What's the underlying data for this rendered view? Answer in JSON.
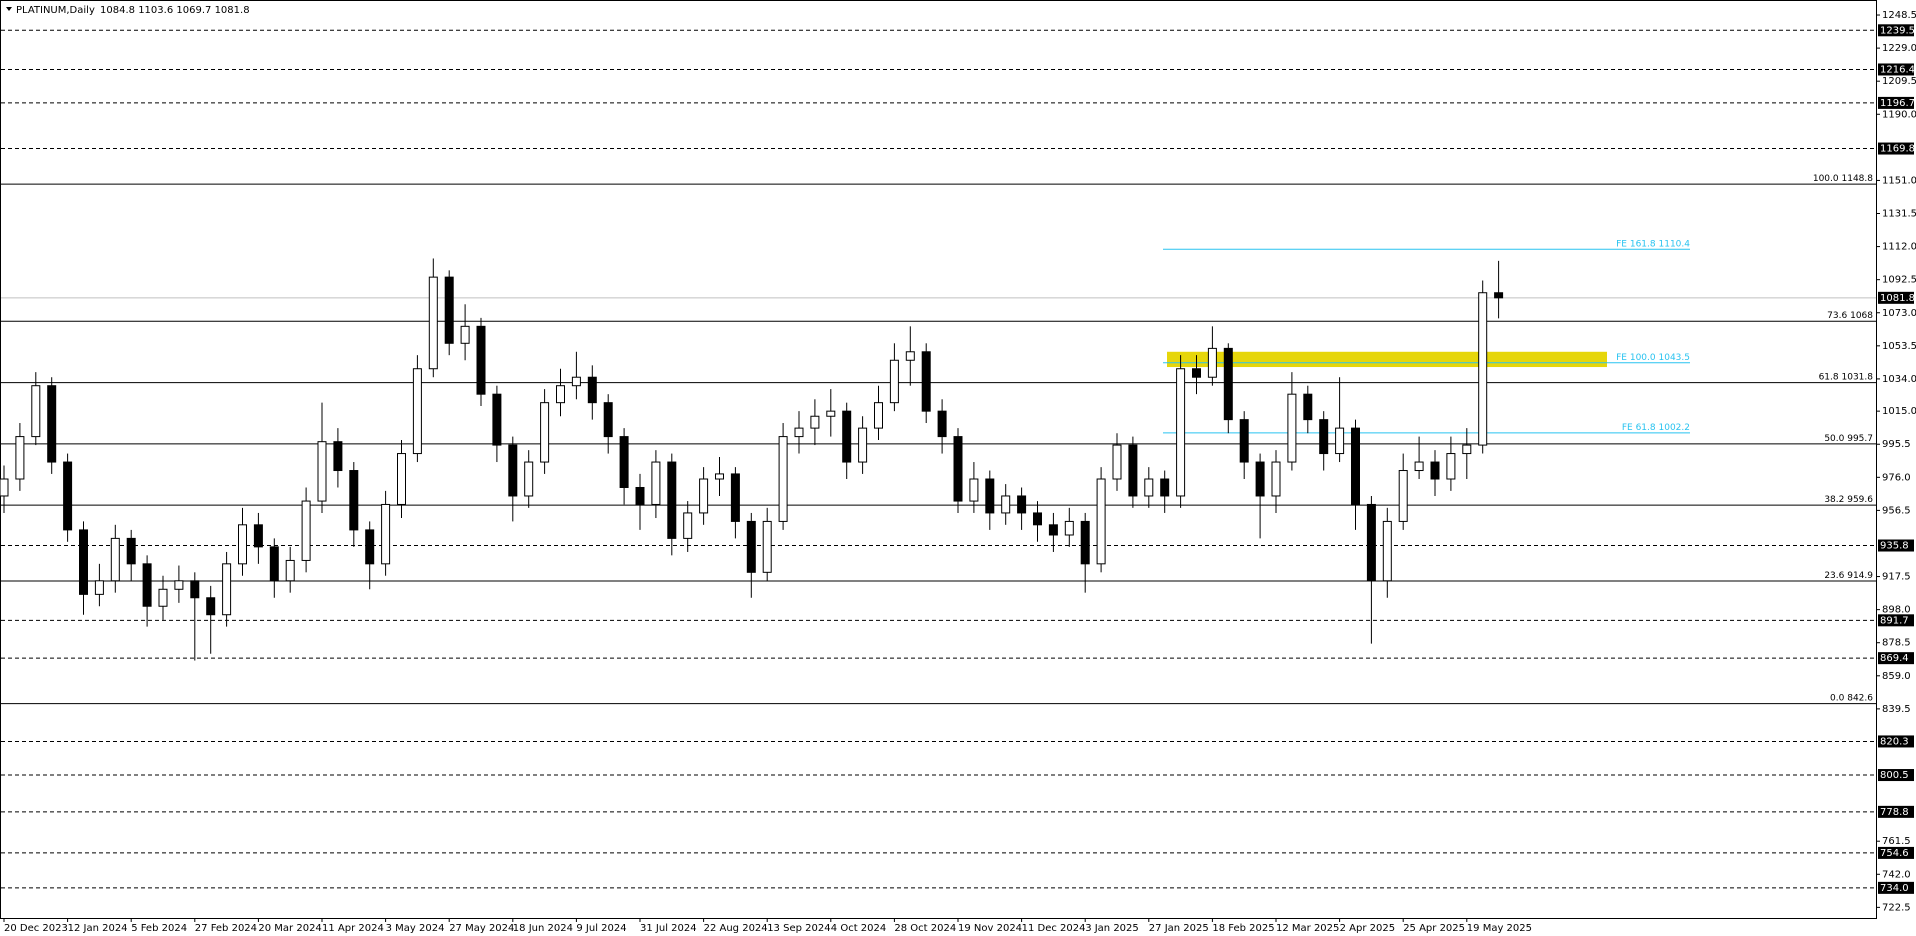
{
  "chart_data": {
    "type": "candlestick",
    "symbol": "PLATINUM,Daily",
    "ylim": [
      718,
      1255
    ],
    "yticks": [
      1248.5,
      {
        "value": 1229,
        "label": "1229.0"
      },
      1209.5,
      {
        "value": 1190,
        "label": "1190.0"
      },
      {
        "value": 1151,
        "label": "1151.0"
      },
      1131.5,
      {
        "value": 1112,
        "label": "1112.0"
      },
      1092.5,
      {
        "value": 1073,
        "label": "1073.0"
      },
      1053.5,
      {
        "value": 1034,
        "label": "1034.0"
      },
      {
        "value": 1015,
        "label": "1015.0"
      },
      995.5,
      {
        "value": 976,
        "label": "976.0"
      },
      956.5,
      917.5,
      {
        "value": 898,
        "label": "898.0"
      },
      878.5,
      {
        "value": 859,
        "label": "859.0"
      },
      839.5,
      761.5,
      {
        "value": 742,
        "label": "742.0"
      },
      722.5
    ],
    "xticks": [
      {
        "value": 0,
        "label": "20 Dec 2023"
      },
      {
        "value": 4,
        "label": "12 Jan 2024"
      },
      {
        "value": 8,
        "label": "5 Feb 2024"
      },
      {
        "value": 12,
        "label": "27 Feb 2024"
      },
      {
        "value": 16,
        "label": "20 Mar 2024"
      },
      {
        "value": 20,
        "label": "11 Apr 2024"
      },
      {
        "value": 24,
        "label": "3 May 2024"
      },
      {
        "value": 28,
        "label": "27 May 2024"
      },
      {
        "value": 32,
        "label": "18 Jun 2024"
      },
      {
        "value": 36,
        "label": "9 Jul 2024"
      },
      {
        "value": 40,
        "label": "31 Jul 2024"
      },
      {
        "value": 44,
        "label": "22 Aug 2024"
      },
      {
        "value": 48,
        "label": "13 Sep 2024"
      },
      {
        "value": 52,
        "label": "4 Oct 2024"
      },
      {
        "value": 56,
        "label": "28 Oct 2024"
      },
      {
        "value": 60,
        "label": "19 Nov 2024"
      },
      {
        "value": 64,
        "label": "11 Dec 2024"
      },
      {
        "value": 68,
        "label": "3 Jan 2025"
      },
      {
        "value": 72,
        "label": "27 Jan 2025"
      },
      {
        "value": 76,
        "label": "18 Feb 2025"
      },
      {
        "value": 80,
        "label": "12 Mar 2025"
      },
      {
        "value": 84,
        "label": "2 Apr 2025"
      },
      {
        "value": 88,
        "label": "25 Apr 2025"
      },
      {
        "value": 92,
        "label": "19 May 2025"
      }
    ],
    "candles": {
      "open": [
        965,
        975,
        1000,
        1030,
        985,
        945,
        907,
        915,
        940,
        925,
        900,
        910,
        915,
        905,
        895,
        925,
        948,
        935,
        915,
        927,
        962,
        997,
        980,
        945,
        925,
        960,
        990,
        1040,
        1094,
        1055,
        1065,
        1025,
        995,
        965,
        985,
        1020,
        1030,
        1035,
        1020,
        1000,
        970,
        960,
        985,
        940,
        955,
        975,
        978,
        950,
        920,
        950,
        1000,
        1005,
        1012,
        1015,
        985,
        1005,
        1020,
        1045,
        1050,
        1015,
        1000,
        962,
        975,
        955,
        965,
        955,
        948,
        942,
        950,
        925,
        975,
        995,
        965,
        975,
        965,
        1040,
        1035,
        1052,
        1010,
        985,
        965,
        985,
        1025,
        1010,
        990,
        1005,
        960,
        915,
        950,
        980,
        985,
        975,
        990,
        995,
        1084.8
      ],
      "high": [
        983,
        1008,
        1038,
        1035,
        990,
        950,
        925,
        948,
        945,
        930,
        918,
        924,
        920,
        912,
        932,
        958,
        955,
        940,
        935,
        970,
        1020,
        1005,
        985,
        950,
        968,
        998,
        1048,
        1105,
        1098,
        1078,
        1070,
        1030,
        1000,
        992,
        1028,
        1040,
        1050,
        1042,
        1025,
        1005,
        978,
        992,
        990,
        962,
        982,
        988,
        982,
        955,
        958,
        1008,
        1015,
        1022,
        1028,
        1020,
        1012,
        1030,
        1055,
        1065,
        1055,
        1022,
        1005,
        985,
        980,
        972,
        970,
        962,
        955,
        958,
        955,
        982,
        1002,
        1000,
        982,
        980,
        1048,
        1048,
        1065,
        1055,
        1015,
        990,
        992,
        1038,
        1030,
        1015,
        1035,
        1010,
        965,
        958,
        990,
        1000,
        992,
        1000,
        1005,
        1092,
        1103.6
      ],
      "low": [
        955,
        968,
        995,
        978,
        938,
        895,
        900,
        908,
        915,
        888,
        892,
        902,
        868,
        872,
        888,
        918,
        925,
        905,
        908,
        920,
        955,
        970,
        935,
        910,
        918,
        952,
        985,
        1035,
        1048,
        1045,
        1018,
        985,
        950,
        958,
        978,
        1012,
        1022,
        1010,
        990,
        960,
        945,
        952,
        930,
        932,
        948,
        965,
        940,
        905,
        915,
        945,
        990,
        995,
        1000,
        975,
        978,
        998,
        1015,
        1030,
        1008,
        990,
        955,
        955,
        945,
        948,
        945,
        938,
        932,
        935,
        908,
        920,
        968,
        958,
        958,
        955,
        958,
        1025,
        1030,
        1002,
        975,
        940,
        955,
        980,
        1002,
        980,
        985,
        945,
        878,
        905,
        945,
        975,
        965,
        968,
        975,
        990,
        1069.7
      ],
      "close": [
        975,
        1000,
        1030,
        985,
        945,
        907,
        915,
        940,
        925,
        900,
        910,
        915,
        905,
        895,
        925,
        948,
        935,
        915,
        927,
        962,
        997,
        980,
        945,
        925,
        960,
        990,
        1040,
        1094,
        1055,
        1065,
        1025,
        995,
        965,
        985,
        1020,
        1030,
        1035,
        1020,
        1000,
        970,
        960,
        985,
        940,
        955,
        975,
        978,
        950,
        920,
        950,
        1000,
        1005,
        1012,
        1015,
        985,
        1005,
        1020,
        1045,
        1050,
        1015,
        1000,
        962,
        975,
        955,
        965,
        955,
        948,
        942,
        950,
        925,
        975,
        995,
        965,
        975,
        965,
        1040,
        1035,
        1052,
        1010,
        985,
        965,
        985,
        1025,
        1010,
        990,
        1005,
        960,
        915,
        950,
        980,
        985,
        975,
        990,
        995,
        1084.8,
        1081.8
      ]
    },
    "levels": [
      1239.5,
      1216.4,
      1196.7,
      1169.8,
      935.8,
      891.7,
      869.4,
      820.3,
      800.5,
      778.8,
      754.6,
      {
        "value": 734,
        "label": "734.0"
      }
    ],
    "fib_levels": [
      {
        "ratio": "100.0",
        "value": 1148.8
      },
      {
        "ratio": "73.6",
        "value": 1068
      },
      {
        "ratio": "61.8",
        "value": 1031.8
      },
      {
        "ratio": "50.0",
        "value": 995.7
      },
      {
        "ratio": "38.2",
        "value": 959.6
      },
      {
        "ratio": "23.6",
        "value": 914.9
      },
      {
        "ratio": "0.0",
        "value": 842.6
      }
    ],
    "fe_levels": [
      {
        "name": "FE 161.8",
        "value": 1110.4
      },
      {
        "name": "FE 100.0",
        "value": 1043.5
      },
      {
        "name": "FE 61.8",
        "value": 1002.2
      }
    ],
    "zone": {
      "from": 1041,
      "to": 1050,
      "color": "#e6d60a"
    },
    "fe_color": "#29c3f0"
  }
}
